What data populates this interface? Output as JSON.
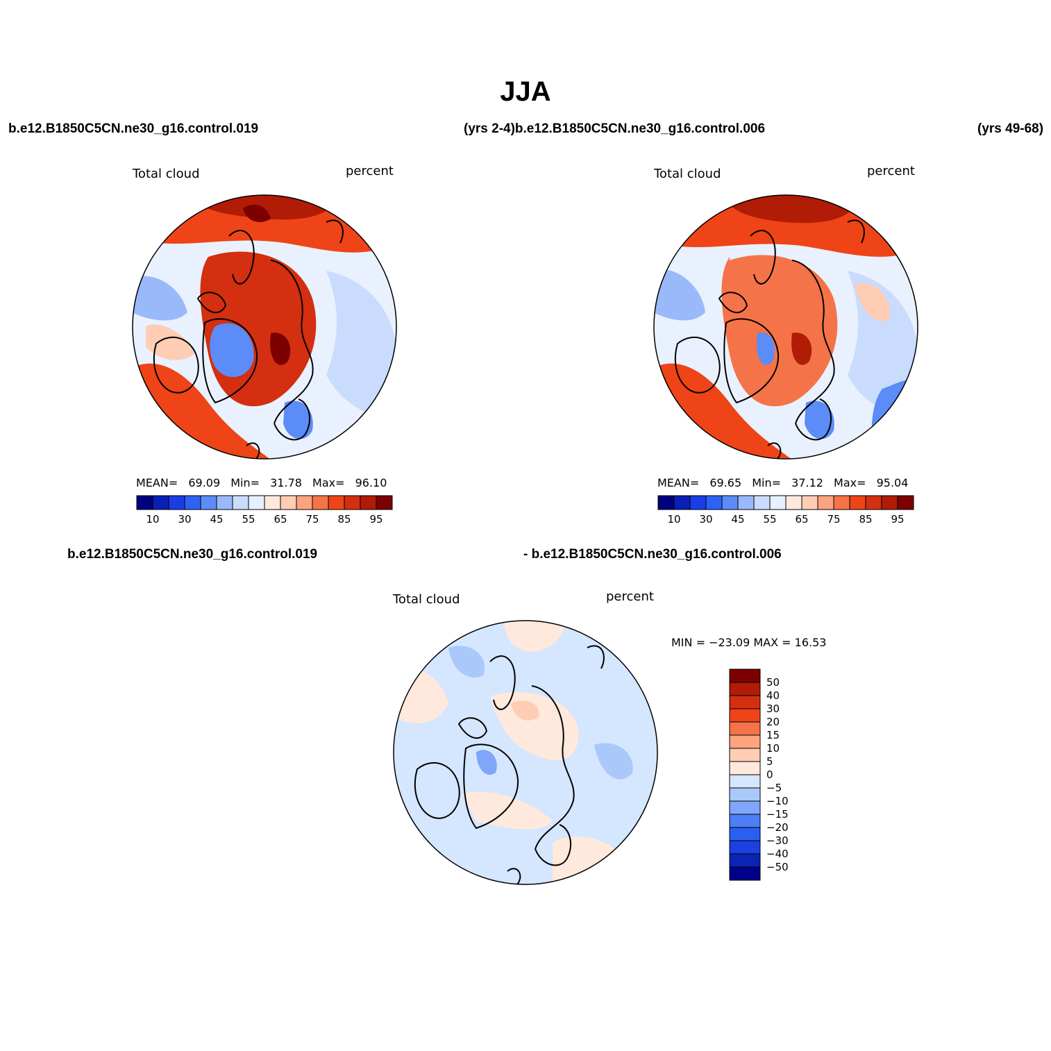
{
  "figure": {
    "title": "JJA",
    "top_left_case": "b.e12.B1850C5CN.ne30_g16.control.019",
    "top_center_case": "(yrs 2-4)b.e12.B1850C5CN.ne30_g16.control.006",
    "top_right_case": "(yrs 49-68)",
    "bottom_left_case": "b.e12.B1850C5CN.ne30_g16.control.019",
    "bottom_center_case": "- b.e12.B1850C5CN.ne30_g16.control.006"
  },
  "panels": [
    {
      "name": "case1",
      "variable": "Total cloud",
      "units": "percent",
      "mean_label": "MEAN=",
      "mean": "69.09",
      "min_label": "Min=",
      "min": "31.78",
      "max_label": "Max=",
      "max": "96.10"
    },
    {
      "name": "case2",
      "variable": "Total cloud",
      "units": "percent",
      "mean_label": "MEAN=",
      "mean": "69.65",
      "min_label": "Min=",
      "min": "37.12",
      "max_label": "Max=",
      "max": "95.04"
    },
    {
      "name": "difference",
      "variable": "Total cloud",
      "units": "percent",
      "minmax_text": "MIN = −23.09 MAX =   16.53"
    }
  ],
  "colorbars": {
    "absolute": {
      "colors": [
        "#000080",
        "#0a1fb5",
        "#1a3de6",
        "#2e62f5",
        "#5b8cf7",
        "#9ab9fa",
        "#c9dcfd",
        "#e6f0ff",
        "#ffe9dc",
        "#ffcdb4",
        "#fca37f",
        "#f57348",
        "#ee4417",
        "#d32f10",
        "#b01c06",
        "#7d0000"
      ],
      "tick_labels": [
        "10",
        "30",
        "45",
        "55",
        "65",
        "75",
        "85",
        "95"
      ]
    },
    "difference": {
      "colors": [
        "#7d0000",
        "#b01c06",
        "#d32f10",
        "#ee4417",
        "#f57348",
        "#fca37f",
        "#ffcdb4",
        "#ffe9dc",
        "#d5e6ff",
        "#abc8fb",
        "#7fa6f8",
        "#4d7ef5",
        "#2a5ff2",
        "#1b40e4",
        "#0b24b5",
        "#00008a"
      ],
      "tick_labels": [
        "50",
        "40",
        "30",
        "20",
        "15",
        "10",
        "5",
        "0",
        "−5",
        "−10",
        "−15",
        "−20",
        "−30",
        "−40",
        "−50"
      ]
    }
  },
  "chart_data": [
    {
      "type": "heatmap",
      "title": "Total cloud",
      "projection": "north polar stereographic",
      "season": "JJA",
      "units": "percent",
      "levels": [
        10,
        20,
        30,
        40,
        45,
        50,
        55,
        60,
        65,
        70,
        75,
        80,
        85,
        90,
        95
      ],
      "stats": {
        "mean": 69.09,
        "min": 31.78,
        "max": 96.1
      }
    },
    {
      "type": "heatmap",
      "title": "Total cloud",
      "projection": "north polar stereographic",
      "season": "JJA",
      "units": "percent",
      "levels": [
        10,
        20,
        30,
        40,
        45,
        50,
        55,
        60,
        65,
        70,
        75,
        80,
        85,
        90,
        95
      ],
      "stats": {
        "mean": 69.65,
        "min": 37.12,
        "max": 95.04
      }
    },
    {
      "type": "heatmap",
      "title": "Total cloud (difference)",
      "projection": "north polar stereographic",
      "season": "JJA",
      "units": "percent",
      "levels": [
        -50,
        -40,
        -30,
        -20,
        -15,
        -10,
        -5,
        0,
        5,
        10,
        15,
        20,
        30,
        40,
        50
      ],
      "stats": {
        "min": -23.09,
        "max": 16.53
      }
    }
  ]
}
